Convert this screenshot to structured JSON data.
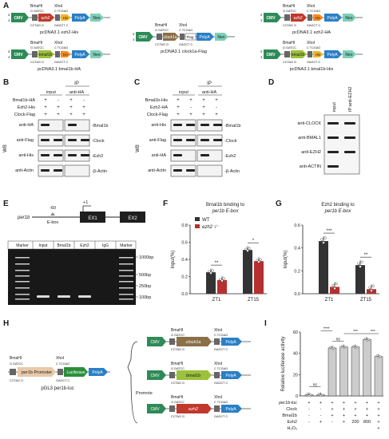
{
  "panels": {
    "A": {
      "letter": "A",
      "constructs": [
        {
          "name": "pcDNA3.1 ezh2-His",
          "gene": "ezh2",
          "tag": "His"
        },
        {
          "name": "pcDNA3.1 clock1a-Flag",
          "gene": "clock1a",
          "tag": "Flag"
        },
        {
          "name": "pcDNA3.1 ezh2-HA",
          "gene": "ezh2",
          "tag": "HA"
        },
        {
          "name": "pcDNA3.1 bmal1b-HA",
          "gene": "bmal1b",
          "tag": "HA"
        },
        {
          "name": "pcDNA3.1 bmal1b-His",
          "gene": "bmal1b",
          "tag": "His"
        }
      ],
      "elements": {
        "cmv": "CMV",
        "polya": "PolyA",
        "neo": "Neo",
        "bmahi": "BmaHI",
        "xhoi": "XhoI",
        "site1": "G GATCC",
        "site1b": "CCTAG G",
        "site2": "C TCGAG",
        "site2b": "GAGCT C"
      }
    },
    "B": {
      "letter": "B",
      "ip_header": "IP",
      "cols": [
        "input",
        "anti-HA"
      ],
      "rows": [
        {
          "label": "Bmal1b-HA",
          "signs": [
            "+",
            "-",
            "+",
            "-"
          ]
        },
        {
          "label": "Ezh2-His",
          "signs": [
            "+",
            "+",
            "+",
            "+"
          ]
        },
        {
          "label": "Clock-Flag",
          "signs": [
            "+",
            "+",
            "+",
            "+"
          ]
        }
      ],
      "side": "WB",
      "blots": [
        {
          "ab": "anti-HA",
          "target": "Bmal1b"
        },
        {
          "ab": "anti-Flag",
          "target": "Clock"
        },
        {
          "ab": "anti-His",
          "target": "Ezh2"
        },
        {
          "ab": "anti-Actin",
          "target": "β-Actin"
        }
      ]
    },
    "C": {
      "letter": "C",
      "ip_header": "IP",
      "cols": [
        "input",
        "anti-HA"
      ],
      "rows": [
        {
          "label": "Bmal1b-His",
          "signs": [
            "+",
            "+",
            "+",
            "+"
          ]
        },
        {
          "label": "Ezh2-HA",
          "signs": [
            "+",
            "-",
            "+",
            "-"
          ]
        },
        {
          "label": "Clock-Flag",
          "signs": [
            "+",
            "+",
            "+",
            "+"
          ]
        }
      ],
      "side": "WB",
      "blots": [
        {
          "ab": "anti-His",
          "target": "Bmal1b"
        },
        {
          "ab": "anti-Flag",
          "target": "Clock"
        },
        {
          "ab": "anti-HA",
          "target": "Ezh2"
        },
        {
          "ab": "anti-Actin",
          "target": "β-Actin"
        }
      ]
    },
    "D": {
      "letter": "D",
      "cols": [
        "input",
        "IP:anti-EZH2"
      ],
      "blots": [
        "anti-CLOCK",
        "anti-BMAL1",
        "anti-EZH2",
        "anti-ACTIN"
      ]
    },
    "E": {
      "letter": "E",
      "gene": "per1b",
      "pos_minus": "-60",
      "pos_plus": "+1",
      "ebox": "E-box",
      "ex1": "EX1",
      "ex2": "EX2",
      "lanes": [
        "Marker",
        "Input",
        "Bmal1b",
        "Ezh2",
        "IgG",
        "Marker"
      ],
      "ladder": [
        "1000bp",
        "500bp",
        "250bp",
        "100bp"
      ]
    },
    "F": {
      "letter": "F",
      "title_line1": "Bmal1b binding to",
      "title_line2": "per1b E-box",
      "legend": [
        "WT",
        "ezh2⁻/⁻"
      ],
      "sig": [
        "**",
        "*"
      ]
    },
    "G": {
      "letter": "G",
      "title_line1": "Ezh2 binding to",
      "title_line2": "per1b E-box",
      "sig": [
        "***",
        "**"
      ]
    },
    "H": {
      "letter": "H",
      "reporter": "pGL3 per1b-luc",
      "promoter": "per1b Promoter",
      "luciferase": "Luciferase",
      "genes": [
        "clock1a",
        "bmal1b",
        "ezh2"
      ],
      "promote": "Promote"
    },
    "I": {
      "letter": "I",
      "rows": [
        {
          "label": "per1b-luc",
          "signs": [
            "+",
            "+",
            "+",
            "+",
            "+",
            "+",
            "+"
          ]
        },
        {
          "label": "Clock",
          "signs": [
            "-",
            "-",
            "+",
            "+",
            "+",
            "+",
            "+"
          ]
        },
        {
          "label": "Bmal1b",
          "signs": [
            "-",
            "-",
            "+",
            "+",
            "+",
            "+",
            "+"
          ]
        },
        {
          "label": "Ezh2",
          "signs": [
            "-",
            "+",
            "-",
            "+",
            "200",
            "800",
            "+"
          ]
        },
        {
          "label": "H₂O₂",
          "signs": [
            "",
            "",
            "",
            "",
            "",
            "",
            "+"
          ]
        }
      ],
      "sig": [
        "ns",
        "****",
        "ns",
        "***",
        "***"
      ]
    }
  },
  "chart_data": [
    {
      "type": "bar",
      "title": "Bmal1b binding to per1b E-box",
      "categories": [
        "ZT1",
        "ZT15"
      ],
      "ylabel": "Input(%)",
      "ylim": [
        0,
        0.8
      ],
      "yticks": [
        "0.0",
        "0.2",
        "0.4",
        "0.6",
        "0.8"
      ],
      "series": [
        {
          "name": "WT",
          "values": [
            0.25,
            0.51
          ],
          "color": "#333333"
        },
        {
          "name": "ezh2⁻/⁻",
          "values": [
            0.16,
            0.38
          ],
          "color": "#b5302f"
        }
      ],
      "significance": [
        "**",
        "*"
      ]
    },
    {
      "type": "bar",
      "title": "Ezh2 binding to per1b E-box",
      "categories": [
        "ZT1",
        "ZT15"
      ],
      "ylabel": "Input(%)",
      "ylim": [
        0,
        0.6
      ],
      "yticks": [
        "0.0",
        "0.2",
        "0.4",
        "0.6"
      ],
      "series": [
        {
          "values": [
            0.46,
            0.25
          ],
          "color": "#333333"
        },
        {
          "values": [
            0.06,
            0.04
          ],
          "color": "#b5302f"
        }
      ],
      "significance": [
        "***",
        "**"
      ]
    },
    {
      "type": "bar",
      "ylabel": "Relative luciferase activity",
      "ylim": [
        0,
        60
      ],
      "yticks": [
        "0",
        "20",
        "40",
        "60"
      ],
      "categories": [
        "1",
        "2",
        "3",
        "4",
        "5",
        "6",
        "7"
      ],
      "values": [
        1,
        1,
        45,
        46,
        46,
        53,
        37
      ],
      "colors": [
        "#cccccc",
        "#cccccc",
        "#cccccc",
        "#cccccc",
        "#cccccc",
        "#cccccc",
        "#cccccc"
      ],
      "significance": [
        "ns",
        "****",
        "ns",
        "***",
        "***"
      ]
    }
  ]
}
